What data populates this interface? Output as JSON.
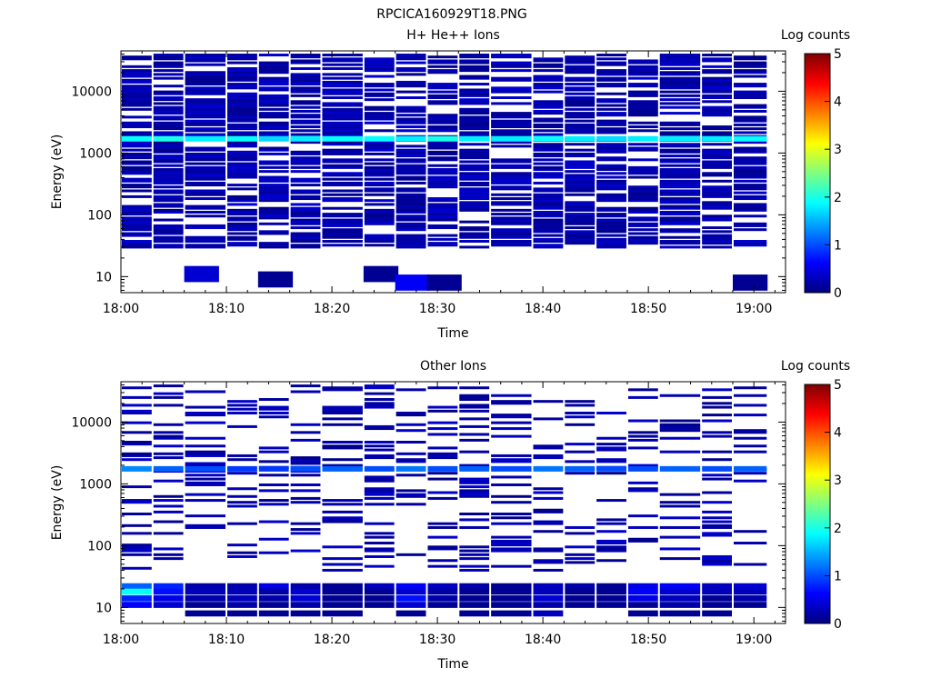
{
  "figure_title": "RPCICA160929T18.PNG",
  "colors": {
    "background": "#ffffff",
    "axis": "#000000",
    "colormap": [
      "#00007f",
      "#0000ff",
      "#007fff",
      "#00ffff",
      "#7fff7f",
      "#ffff00",
      "#ff7f00",
      "#ff0000",
      "#7f0000"
    ]
  },
  "chart_data": [
    {
      "type": "heatmap",
      "title": "H+ He++ Ions",
      "xlabel": "Time",
      "ylabel": "Energy (eV)",
      "y_scale": "log",
      "xlim": [
        "18:00",
        "19:03"
      ],
      "ylim": [
        5.5,
        45000
      ],
      "x_ticks": [
        "18:00",
        "18:10",
        "18:20",
        "18:30",
        "18:40",
        "18:50",
        "19:00"
      ],
      "y_ticks": [
        "10",
        "100",
        "1000",
        "10000"
      ],
      "colorbar": {
        "label": "Log counts",
        "range": [
          0,
          5
        ],
        "ticks": [
          "0",
          "1",
          "2",
          "3",
          "4",
          "5"
        ]
      },
      "time_bins": [
        "18:00",
        "18:03",
        "18:06",
        "18:10",
        "18:13",
        "18:16",
        "18:19",
        "18:23",
        "18:26",
        "18:29",
        "18:32",
        "18:35",
        "18:39",
        "18:42",
        "18:45",
        "18:48",
        "18:51",
        "18:55",
        "18:58"
      ],
      "dominant_band": {
        "energy_ev": 1700,
        "log_counts": [
          1.9,
          2.0,
          1.8,
          1.9,
          1.7,
          1.8,
          1.9,
          1.9,
          1.8,
          2.0,
          1.8,
          1.8,
          1.9,
          1.8,
          1.7,
          1.8,
          1.8,
          1.8,
          1.9
        ]
      },
      "low_energy_cells": [
        {
          "time": "18:06",
          "energy_ev": 11,
          "log_counts": 0.4
        },
        {
          "time": "18:13",
          "energy_ev": 9,
          "log_counts": 0.1
        },
        {
          "time": "18:23",
          "energy_ev": 11,
          "log_counts": 0.1
        },
        {
          "time": "18:26",
          "energy_ev": 8,
          "log_counts": 0.6
        },
        {
          "time": "18:29",
          "energy_ev": 8,
          "log_counts": 0.1
        },
        {
          "time": "18:58",
          "energy_ev": 8,
          "log_counts": 0.1
        }
      ]
    },
    {
      "type": "heatmap",
      "title": "Other Ions",
      "xlabel": "Time",
      "ylabel": "Energy (eV)",
      "y_scale": "log",
      "xlim": [
        "18:00",
        "19:03"
      ],
      "ylim": [
        5.5,
        45000
      ],
      "x_ticks": [
        "18:00",
        "18:10",
        "18:20",
        "18:30",
        "18:40",
        "18:50",
        "19:00"
      ],
      "y_ticks": [
        "10",
        "100",
        "1000",
        "10000"
      ],
      "colorbar": {
        "label": "Log counts",
        "range": [
          0,
          5
        ],
        "ticks": [
          "0",
          "1",
          "2",
          "3",
          "4",
          "5"
        ]
      },
      "time_bins": [
        "18:00",
        "18:03",
        "18:06",
        "18:10",
        "18:13",
        "18:16",
        "18:19",
        "18:23",
        "18:26",
        "18:29",
        "18:32",
        "18:35",
        "18:39",
        "18:42",
        "18:45",
        "18:48",
        "18:51",
        "18:55",
        "18:58"
      ],
      "dominant_band": {
        "energy_ev": 1750,
        "log_counts": [
          1.3,
          1.1,
          1.0,
          0.9,
          0.9,
          1.0,
          1.1,
          1.0,
          1.2,
          1.0,
          1.1,
          1.0,
          1.2,
          1.1,
          1.0,
          1.0,
          1.1,
          1.0,
          1.1
        ]
      },
      "low_energy_band": {
        "energies_ev": [
          22,
          18,
          14,
          11,
          8
        ],
        "log_counts": [
          [
            1.1,
            0.8,
            0.2,
            0.2,
            0.5,
            0.2,
            0.1,
            0.3,
            0.6,
            0.3,
            0.2,
            0.1,
            0.3,
            0.2,
            0.1,
            0.5,
            0.6,
            0.3,
            0.4
          ],
          [
            1.9,
            0.7,
            0.3,
            0.3,
            0.2,
            0.4,
            0.1,
            0.1,
            0.4,
            0.2,
            0.1,
            0.1,
            0.3,
            0.1,
            0.1,
            0.6,
            0.4,
            0.3,
            0.3
          ],
          [
            0.8,
            0.5,
            0.2,
            0.3,
            0.2,
            0.4,
            0.1,
            0.1,
            0.7,
            0.2,
            0.1,
            0.1,
            0.4,
            0.1,
            0.1,
            0.5,
            0.3,
            0.1,
            0.2
          ],
          [
            0.6,
            0.4,
            0.1,
            0.2,
            0.1,
            0.2,
            0.1,
            0.1,
            0.4,
            0.1,
            0.1,
            0.1,
            0.2,
            0.1,
            0.1,
            0.1,
            0.2,
            0.1,
            0.1
          ],
          [
            null,
            null,
            0.1,
            0.1,
            0.1,
            0.1,
            0.1,
            null,
            0.1,
            null,
            0.1,
            0.1,
            0.3,
            null,
            null,
            0.1,
            0.1,
            0.1,
            null
          ]
        ]
      }
    }
  ]
}
